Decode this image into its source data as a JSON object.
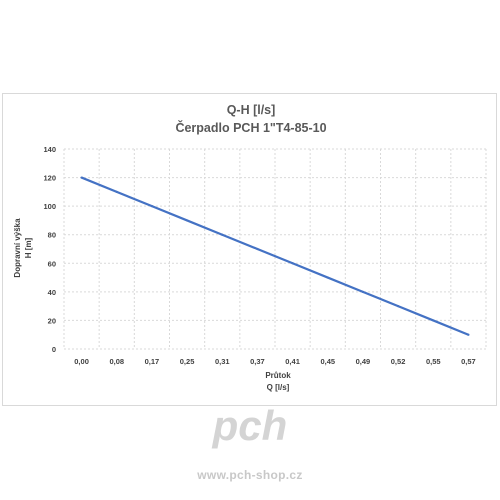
{
  "chart_data": {
    "type": "line",
    "title_lines": [
      "Q-H  [l/s]",
      "Čerpadlo PCH 1\"T4-85-10"
    ],
    "xlabel_lines": [
      "Průtok",
      "Q [l/s]"
    ],
    "ylabel_lines": [
      "Dopravní výška",
      "H [m]"
    ],
    "categories": [
      "0,00",
      "0,08",
      "0,17",
      "0,25",
      "0,31",
      "0,37",
      "0,41",
      "0,45",
      "0,49",
      "0,52",
      "0,55",
      "0,57"
    ],
    "values": [
      120,
      110,
      100,
      90,
      80,
      70,
      60,
      50,
      40,
      30,
      20,
      10
    ],
    "ylim": [
      0,
      140
    ],
    "yticks": [
      "0",
      "20",
      "40",
      "60",
      "80",
      "100",
      "120",
      "140"
    ],
    "grid": true,
    "series_color": "#4472C4"
  },
  "branding": {
    "logo_text": "pch",
    "website": "www.pch-shop.cz"
  }
}
